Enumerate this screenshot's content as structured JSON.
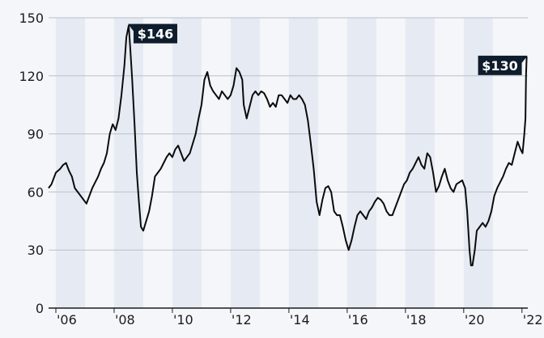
{
  "chart_data": {
    "type": "line",
    "title": "",
    "xlabel": "",
    "ylabel": "",
    "ylim": [
      0,
      150
    ],
    "yticks": [
      0,
      30,
      60,
      90,
      120,
      150
    ],
    "ytick_labels": [
      "0",
      "30",
      "60",
      "90",
      "120",
      "150"
    ],
    "xlim": [
      2005.75,
      2022.2
    ],
    "xticks": [
      2006,
      2008,
      2010,
      2012,
      2014,
      2016,
      2018,
      2020,
      2022
    ],
    "xtick_labels": [
      "'06",
      "'08",
      "'10",
      "'12",
      "'14",
      "'16",
      "'18",
      "'20",
      "'22"
    ],
    "shaded_years": [
      2006,
      2008,
      2010,
      2012,
      2014,
      2016,
      2018,
      2020
    ],
    "grid": "horizontal",
    "series": [
      {
        "x": [
          2005.75,
          2005.85,
          2006.0,
          2006.15,
          2006.25,
          2006.35,
          2006.45,
          2006.55,
          2006.65,
          2006.75,
          2006.85,
          2006.95,
          2007.05,
          2007.15,
          2007.25,
          2007.35,
          2007.45,
          2007.55,
          2007.65,
          2007.75,
          2007.85,
          2007.95,
          2008.05,
          2008.15,
          2008.25,
          2008.35,
          2008.42,
          2008.5,
          2008.55,
          2008.62,
          2008.7,
          2008.78,
          2008.85,
          2008.92,
          2009.0,
          2009.1,
          2009.2,
          2009.3,
          2009.4,
          2009.5,
          2009.6,
          2009.7,
          2009.8,
          2009.9,
          2010.0,
          2010.1,
          2010.2,
          2010.3,
          2010.4,
          2010.5,
          2010.6,
          2010.7,
          2010.8,
          2010.9,
          2011.0,
          2011.1,
          2011.2,
          2011.3,
          2011.4,
          2011.5,
          2011.6,
          2011.7,
          2011.8,
          2011.9,
          2012.0,
          2012.1,
          2012.2,
          2012.3,
          2012.4,
          2012.45,
          2012.55,
          2012.65,
          2012.75,
          2012.85,
          2012.95,
          2013.05,
          2013.15,
          2013.25,
          2013.35,
          2013.45,
          2013.55,
          2013.65,
          2013.75,
          2013.85,
          2013.95,
          2014.05,
          2014.15,
          2014.25,
          2014.35,
          2014.45,
          2014.55,
          2014.65,
          2014.75,
          2014.85,
          2014.95,
          2015.05,
          2015.15,
          2015.25,
          2015.35,
          2015.45,
          2015.55,
          2015.65,
          2015.75,
          2015.85,
          2015.95,
          2016.05,
          2016.15,
          2016.25,
          2016.35,
          2016.45,
          2016.55,
          2016.65,
          2016.75,
          2016.85,
          2016.95,
          2017.05,
          2017.15,
          2017.25,
          2017.35,
          2017.45,
          2017.55,
          2017.65,
          2017.75,
          2017.85,
          2017.95,
          2018.05,
          2018.15,
          2018.25,
          2018.35,
          2018.45,
          2018.55,
          2018.65,
          2018.75,
          2018.85,
          2018.95,
          2019.05,
          2019.15,
          2019.25,
          2019.35,
          2019.45,
          2019.55,
          2019.65,
          2019.75,
          2019.85,
          2019.95,
          2020.05,
          2020.12,
          2020.2,
          2020.25,
          2020.3,
          2020.38,
          2020.45,
          2020.55,
          2020.65,
          2020.75,
          2020.85,
          2020.95,
          2021.05,
          2021.15,
          2021.25,
          2021.35,
          2021.45,
          2021.55,
          2021.65,
          2021.75,
          2021.85,
          2021.95,
          2022.02,
          2022.08,
          2022.12,
          2022.14,
          2022.16
        ],
        "values": [
          62,
          64,
          70,
          72,
          74,
          75,
          71,
          68,
          62,
          60,
          58,
          56,
          54,
          58,
          62,
          65,
          68,
          72,
          75,
          80,
          90,
          95,
          92,
          98,
          110,
          125,
          140,
          146,
          135,
          118,
          95,
          70,
          55,
          42,
          40,
          45,
          50,
          58,
          68,
          70,
          72,
          75,
          78,
          80,
          78,
          82,
          84,
          80,
          76,
          78,
          80,
          85,
          90,
          98,
          105,
          118,
          122,
          115,
          112,
          110,
          108,
          112,
          110,
          108,
          110,
          115,
          124,
          122,
          118,
          105,
          98,
          104,
          110,
          112,
          110,
          112,
          111,
          108,
          104,
          106,
          104,
          110,
          110,
          108,
          106,
          110,
          108,
          108,
          110,
          108,
          105,
          97,
          85,
          72,
          55,
          48,
          56,
          62,
          63,
          60,
          50,
          48,
          48,
          42,
          35,
          30,
          35,
          42,
          48,
          50,
          48,
          46,
          50,
          52,
          55,
          57,
          56,
          54,
          50,
          48,
          48,
          52,
          56,
          60,
          64,
          66,
          70,
          72,
          75,
          78,
          74,
          72,
          80,
          78,
          70,
          60,
          63,
          68,
          72,
          66,
          62,
          60,
          64,
          65,
          66,
          62,
          50,
          30,
          22,
          22,
          30,
          40,
          42,
          44,
          42,
          45,
          50,
          58,
          62,
          65,
          68,
          72,
          75,
          74,
          80,
          86,
          82,
          80,
          90,
          98,
          120,
          130
        ]
      }
    ],
    "annotations": [
      {
        "text": "$146",
        "x": 2008.5,
        "y": 146
      },
      {
        "text": "$130",
        "x": 2022.16,
        "y": 130
      }
    ]
  }
}
